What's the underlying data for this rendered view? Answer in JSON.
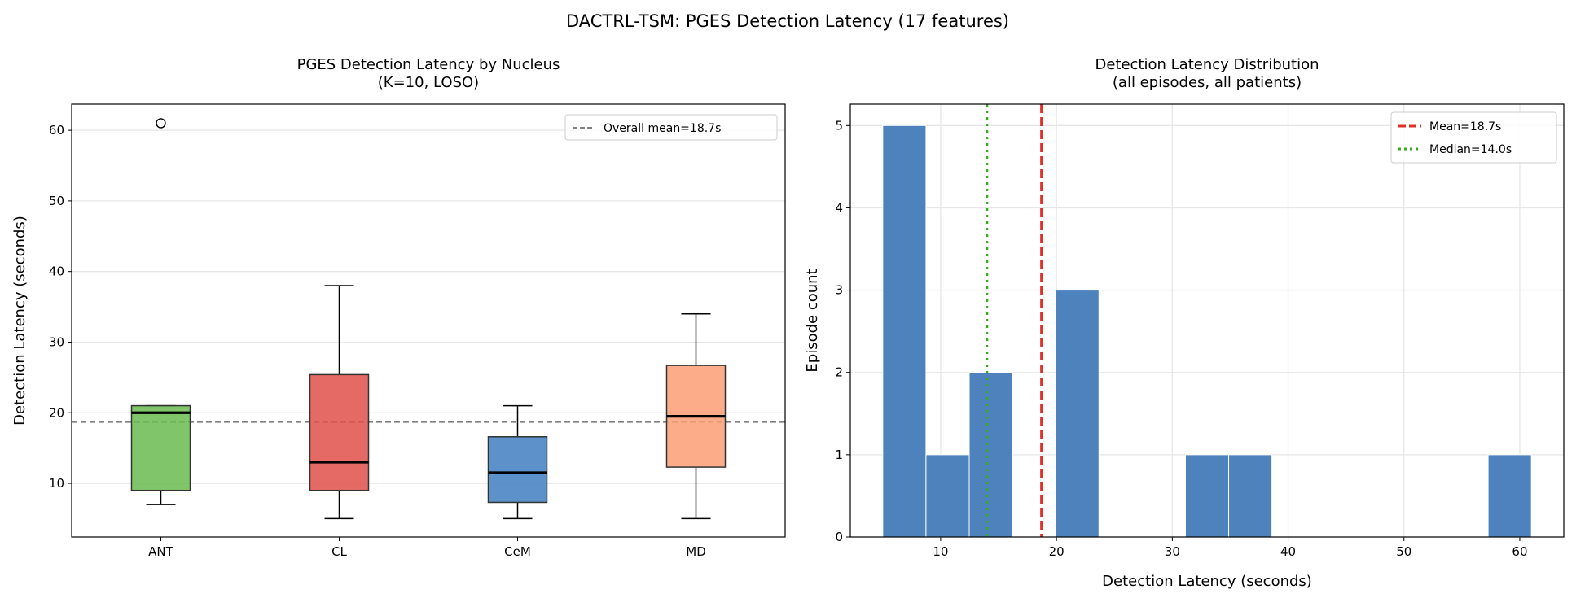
{
  "chart_data": [
    {
      "suptitle": "DACTRL-TSM: PGES Detection Latency (17 features)",
      "type": "box",
      "title": "PGES Detection Latency by Nucleus",
      "subtitle": "(K=10, LOSO)",
      "xlabel": "",
      "ylabel": "Detection Latency (seconds)",
      "ylim": [
        2.4,
        63.7
      ],
      "yticks": [
        10,
        20,
        30,
        40,
        50,
        60
      ],
      "grid": "y",
      "categories": [
        "ANT",
        "CL",
        "CeM",
        "MD"
      ],
      "boxes": [
        {
          "name": "ANT",
          "whislo": 7,
          "q1": 9,
          "median": 20,
          "q3": 21,
          "whishi": 21,
          "fliers": [
            61
          ],
          "color": "#6abb4f"
        },
        {
          "name": "CL",
          "whislo": 5,
          "q1": 9,
          "median": 13,
          "q3": 25.4,
          "whishi": 38,
          "fliers": [],
          "color": "#e0504a"
        },
        {
          "name": "CeM",
          "whislo": 5,
          "q1": 7.3,
          "median": 11.5,
          "q3": 16.6,
          "whishi": 21,
          "fliers": [],
          "color": "#3f7fbf"
        },
        {
          "name": "MD",
          "whislo": 5,
          "q1": 12.3,
          "median": 19.5,
          "q3": 26.7,
          "whishi": 34,
          "fliers": [],
          "color": "#fc9d73"
        }
      ],
      "reference_line": {
        "value": 18.7,
        "label": "Overall mean=18.7s",
        "color": "#808080"
      },
      "legend": "top-right"
    },
    {
      "type": "histogram",
      "title": "Detection Latency Distribution",
      "subtitle": "(all episodes, all patients)",
      "xlabel": "Detection Latency (seconds)",
      "ylabel": "Episode count",
      "xlim": [
        2.2,
        63.8
      ],
      "ylim": [
        0,
        5.26
      ],
      "xticks": [
        10,
        20,
        30,
        40,
        50,
        60
      ],
      "yticks": [
        0,
        1,
        2,
        3,
        4,
        5
      ],
      "grid": "both",
      "bin_start": 5,
      "bin_end": 61,
      "counts": [
        5,
        1,
        2,
        0,
        3,
        0,
        0,
        1,
        1,
        0,
        0,
        0,
        0,
        0,
        1
      ],
      "bar_color": "#4e82bc",
      "lines": [
        {
          "value": 18.7,
          "label": "Mean=18.7s",
          "color": "#e03028",
          "style": "dashed"
        },
        {
          "value": 14.0,
          "label": "Median=14.0s",
          "color": "#3aaa20",
          "style": "dotted"
        }
      ],
      "legend": "top-right"
    }
  ]
}
